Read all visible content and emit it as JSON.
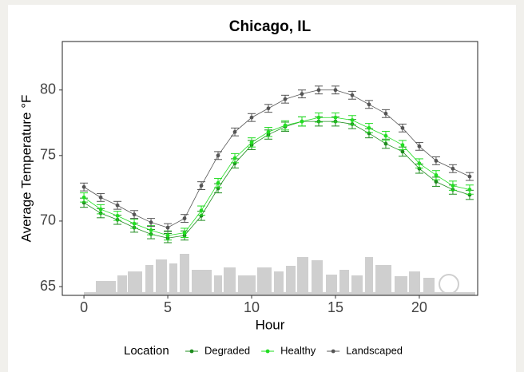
{
  "chart_data": {
    "type": "line",
    "title": "Chicago, IL",
    "x_label": "Hour",
    "y_label": "Average Temperature °F",
    "legend_title": "Location",
    "legend": "bottom",
    "x": [
      0,
      1,
      2,
      3,
      4,
      5,
      6,
      7,
      8,
      9,
      10,
      11,
      12,
      13,
      14,
      15,
      16,
      17,
      18,
      19,
      20,
      21,
      22,
      23
    ],
    "xlim": [
      -1.29,
      23.48
    ],
    "xticks": [
      0,
      5,
      10,
      15,
      20
    ],
    "ylim": [
      64.33,
      83.7
    ],
    "yticks": [
      65,
      70,
      75,
      80
    ],
    "series": [
      {
        "name": "Degraded",
        "color": "#1e8c1e",
        "error": 0.35,
        "values": [
          71.4,
          70.6,
          70.1,
          69.5,
          69.0,
          68.7,
          68.9,
          70.4,
          72.5,
          74.4,
          75.8,
          76.6,
          77.2,
          77.6,
          77.6,
          77.6,
          77.4,
          76.7,
          75.9,
          75.3,
          74.0,
          73.0,
          72.4,
          72.0
        ]
      },
      {
        "name": "Healthy",
        "color": "#22dd22",
        "error": 0.35,
        "values": [
          71.8,
          70.9,
          70.4,
          69.8,
          69.3,
          68.9,
          69.1,
          70.8,
          72.9,
          74.8,
          76.0,
          76.8,
          77.3,
          77.6,
          77.9,
          77.9,
          77.7,
          77.1,
          76.5,
          75.8,
          74.4,
          73.5,
          72.7,
          72.4
        ]
      },
      {
        "name": "Landscaped",
        "color": "#555555",
        "error": 0.3,
        "values": [
          72.6,
          71.8,
          71.2,
          70.5,
          69.9,
          69.5,
          70.2,
          72.7,
          75.0,
          76.8,
          77.9,
          78.6,
          79.3,
          79.7,
          80.0,
          80.0,
          79.6,
          78.9,
          78.2,
          77.1,
          75.7,
          74.6,
          74.0,
          73.4
        ]
      }
    ]
  }
}
